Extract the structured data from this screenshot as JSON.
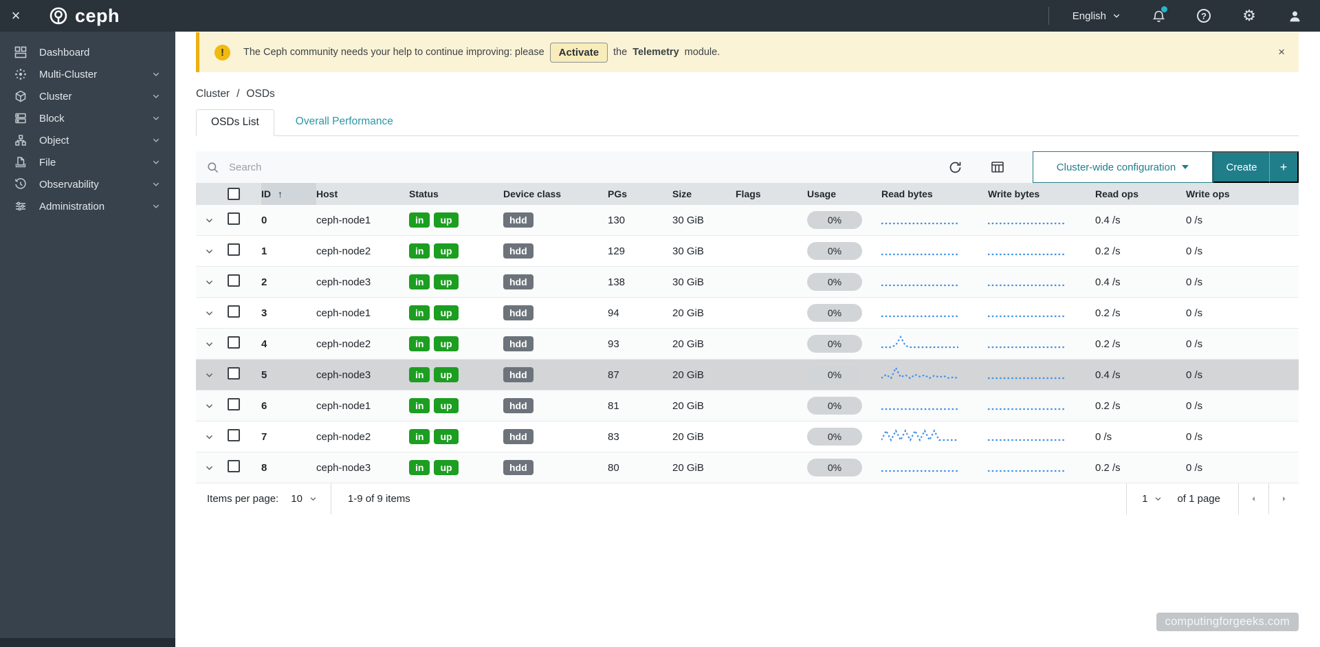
{
  "topbar": {
    "brand": "ceph",
    "language": "English"
  },
  "sidebar": {
    "items": [
      {
        "label": "Dashboard",
        "expandable": false
      },
      {
        "label": "Multi-Cluster",
        "expandable": true
      },
      {
        "label": "Cluster",
        "expandable": true
      },
      {
        "label": "Block",
        "expandable": true
      },
      {
        "label": "Object",
        "expandable": true
      },
      {
        "label": "File",
        "expandable": true
      },
      {
        "label": "Observability",
        "expandable": true
      },
      {
        "label": "Administration",
        "expandable": true
      }
    ]
  },
  "banner": {
    "text_1": "The Ceph community needs your help to continue improving: please",
    "activate_label": "Activate",
    "text_2": "the",
    "bold": "Telemetry",
    "text_3": "module.",
    "close": "×"
  },
  "breadcrumb": {
    "items": [
      "Cluster",
      "OSDs"
    ],
    "separator": "/"
  },
  "tabs": [
    {
      "label": "OSDs List",
      "active": true
    },
    {
      "label": "Overall Performance",
      "active": false
    }
  ],
  "toolbar": {
    "search_placeholder": "Search",
    "config_button": "Cluster-wide configuration",
    "create_label": "Create",
    "create_plus": "+"
  },
  "table": {
    "sort_column": "ID",
    "sort_direction": "asc",
    "sort_arrow": "↑",
    "columns": [
      "ID",
      "Host",
      "Status",
      "Device class",
      "PGs",
      "Size",
      "Flags",
      "Usage",
      "Read bytes",
      "Write bytes",
      "Read ops",
      "Write ops"
    ],
    "rows": [
      {
        "id": "0",
        "host": "ceph-node1",
        "status": [
          "in",
          "up"
        ],
        "device_class": "hdd",
        "pgs": "130",
        "size": "30 GiB",
        "flags": "",
        "usage": "0%",
        "read_ops": "0.4 /s",
        "write_ops": "0 /s",
        "highlighted": false,
        "read_spark": [
          0,
          0,
          0,
          0,
          0,
          0,
          0,
          0,
          0,
          0,
          0,
          0,
          0,
          0,
          0,
          0,
          0
        ],
        "write_spark": [
          0,
          0,
          0,
          0,
          0,
          0,
          0,
          0,
          0,
          0,
          0,
          0,
          0,
          0,
          0,
          0,
          0
        ]
      },
      {
        "id": "1",
        "host": "ceph-node2",
        "status": [
          "in",
          "up"
        ],
        "device_class": "hdd",
        "pgs": "129",
        "size": "30 GiB",
        "flags": "",
        "usage": "0%",
        "read_ops": "0.2 /s",
        "write_ops": "0 /s",
        "highlighted": false,
        "read_spark": [
          0,
          0,
          0,
          0,
          0,
          0,
          0,
          0,
          0,
          0,
          0,
          0,
          0,
          0,
          0,
          0,
          0
        ],
        "write_spark": [
          0,
          0,
          0,
          0,
          0,
          0,
          0,
          0,
          0,
          0,
          0,
          0,
          0,
          0,
          0,
          0,
          0
        ]
      },
      {
        "id": "2",
        "host": "ceph-node3",
        "status": [
          "in",
          "up"
        ],
        "device_class": "hdd",
        "pgs": "138",
        "size": "30 GiB",
        "flags": "",
        "usage": "0%",
        "read_ops": "0.4 /s",
        "write_ops": "0 /s",
        "highlighted": false,
        "read_spark": [
          0,
          0,
          0,
          0,
          0,
          0,
          0,
          0,
          0,
          0,
          0,
          0,
          0,
          0,
          0,
          0,
          0
        ],
        "write_spark": [
          0,
          0,
          0,
          0,
          0,
          0,
          0,
          0,
          0,
          0,
          0,
          0,
          0,
          0,
          0,
          0,
          0
        ]
      },
      {
        "id": "3",
        "host": "ceph-node1",
        "status": [
          "in",
          "up"
        ],
        "device_class": "hdd",
        "pgs": "94",
        "size": "20 GiB",
        "flags": "",
        "usage": "0%",
        "read_ops": "0.2 /s",
        "write_ops": "0 /s",
        "highlighted": false,
        "read_spark": [
          0,
          0,
          0,
          0,
          0,
          0,
          0,
          0,
          0,
          0,
          0,
          0,
          0,
          0,
          0,
          0,
          0
        ],
        "write_spark": [
          0,
          0,
          0,
          0,
          0,
          0,
          0,
          0,
          0,
          0,
          0,
          0,
          0,
          0,
          0,
          0,
          0
        ]
      },
      {
        "id": "4",
        "host": "ceph-node2",
        "status": [
          "in",
          "up"
        ],
        "device_class": "hdd",
        "pgs": "93",
        "size": "20 GiB",
        "flags": "",
        "usage": "0%",
        "read_ops": "0.2 /s",
        "write_ops": "0 /s",
        "highlighted": false,
        "read_spark": [
          0,
          0,
          0,
          0.2,
          1,
          0.15,
          0,
          0,
          0,
          0,
          0,
          0,
          0,
          0,
          0,
          0,
          0
        ],
        "write_spark": [
          0,
          0,
          0,
          0,
          0,
          0,
          0,
          0,
          0,
          0,
          0,
          0,
          0,
          0,
          0,
          0,
          0
        ]
      },
      {
        "id": "5",
        "host": "ceph-node3",
        "status": [
          "in",
          "up"
        ],
        "device_class": "hdd",
        "pgs": "87",
        "size": "20 GiB",
        "flags": "",
        "usage": "0%",
        "read_ops": "0.4 /s",
        "write_ops": "0 /s",
        "highlighted": true,
        "read_spark": [
          0,
          0.35,
          0,
          1,
          0.1,
          0.3,
          0,
          0.35,
          0.15,
          0.3,
          0,
          0.25,
          0.1,
          0.2,
          0,
          0.1,
          0
        ],
        "write_spark": [
          0,
          0,
          0,
          0,
          0,
          0,
          0,
          0,
          0,
          0,
          0,
          0,
          0,
          0,
          0,
          0,
          0
        ]
      },
      {
        "id": "6",
        "host": "ceph-node1",
        "status": [
          "in",
          "up"
        ],
        "device_class": "hdd",
        "pgs": "81",
        "size": "20 GiB",
        "flags": "",
        "usage": "0%",
        "read_ops": "0.2 /s",
        "write_ops": "0 /s",
        "highlighted": false,
        "read_spark": [
          0,
          0,
          0,
          0,
          0,
          0,
          0,
          0,
          0,
          0,
          0,
          0,
          0,
          0,
          0,
          0,
          0
        ],
        "write_spark": [
          0,
          0,
          0,
          0,
          0,
          0,
          0,
          0,
          0,
          0,
          0,
          0,
          0,
          0,
          0,
          0,
          0
        ]
      },
      {
        "id": "7",
        "host": "ceph-node2",
        "status": [
          "in",
          "up"
        ],
        "device_class": "hdd",
        "pgs": "83",
        "size": "20 GiB",
        "flags": "",
        "usage": "0%",
        "read_ops": "0 /s",
        "write_ops": "0 /s",
        "highlighted": false,
        "read_spark": [
          0,
          0.9,
          0,
          0.9,
          0,
          0.9,
          0,
          0.9,
          0,
          0.9,
          0,
          0.9,
          0,
          0,
          0,
          0,
          0
        ],
        "write_spark": [
          0,
          0,
          0,
          0,
          0,
          0,
          0,
          0,
          0,
          0,
          0,
          0,
          0,
          0,
          0,
          0,
          0
        ]
      },
      {
        "id": "8",
        "host": "ceph-node3",
        "status": [
          "in",
          "up"
        ],
        "device_class": "hdd",
        "pgs": "80",
        "size": "20 GiB",
        "flags": "",
        "usage": "0%",
        "read_ops": "0.2 /s",
        "write_ops": "0 /s",
        "highlighted": false,
        "read_spark": [
          0,
          0,
          0,
          0,
          0,
          0,
          0,
          0,
          0,
          0,
          0,
          0,
          0,
          0,
          0,
          0,
          0
        ],
        "write_spark": [
          0,
          0,
          0,
          0,
          0,
          0,
          0,
          0,
          0,
          0,
          0,
          0,
          0,
          0,
          0,
          0,
          0
        ]
      }
    ]
  },
  "pagination": {
    "items_per_page_label": "Items per page:",
    "items_per_page": "10",
    "range": "1-9 of 9 items",
    "page": "1",
    "page_of": "of 1 page"
  },
  "watermark": "computingforgeeks.com",
  "colors": {
    "accent_teal": "#1f7e8a",
    "tab_link_teal": "#2b96a7",
    "status_green": "#1c9e21",
    "badge_gray": "#6c737b",
    "spark_blue": "#3f8fe8",
    "banner_gold": "#eeb012",
    "topbar_bg": "#2a323a",
    "sidebar_bg": "#38424c",
    "notification_dot": "#28b5c8"
  }
}
